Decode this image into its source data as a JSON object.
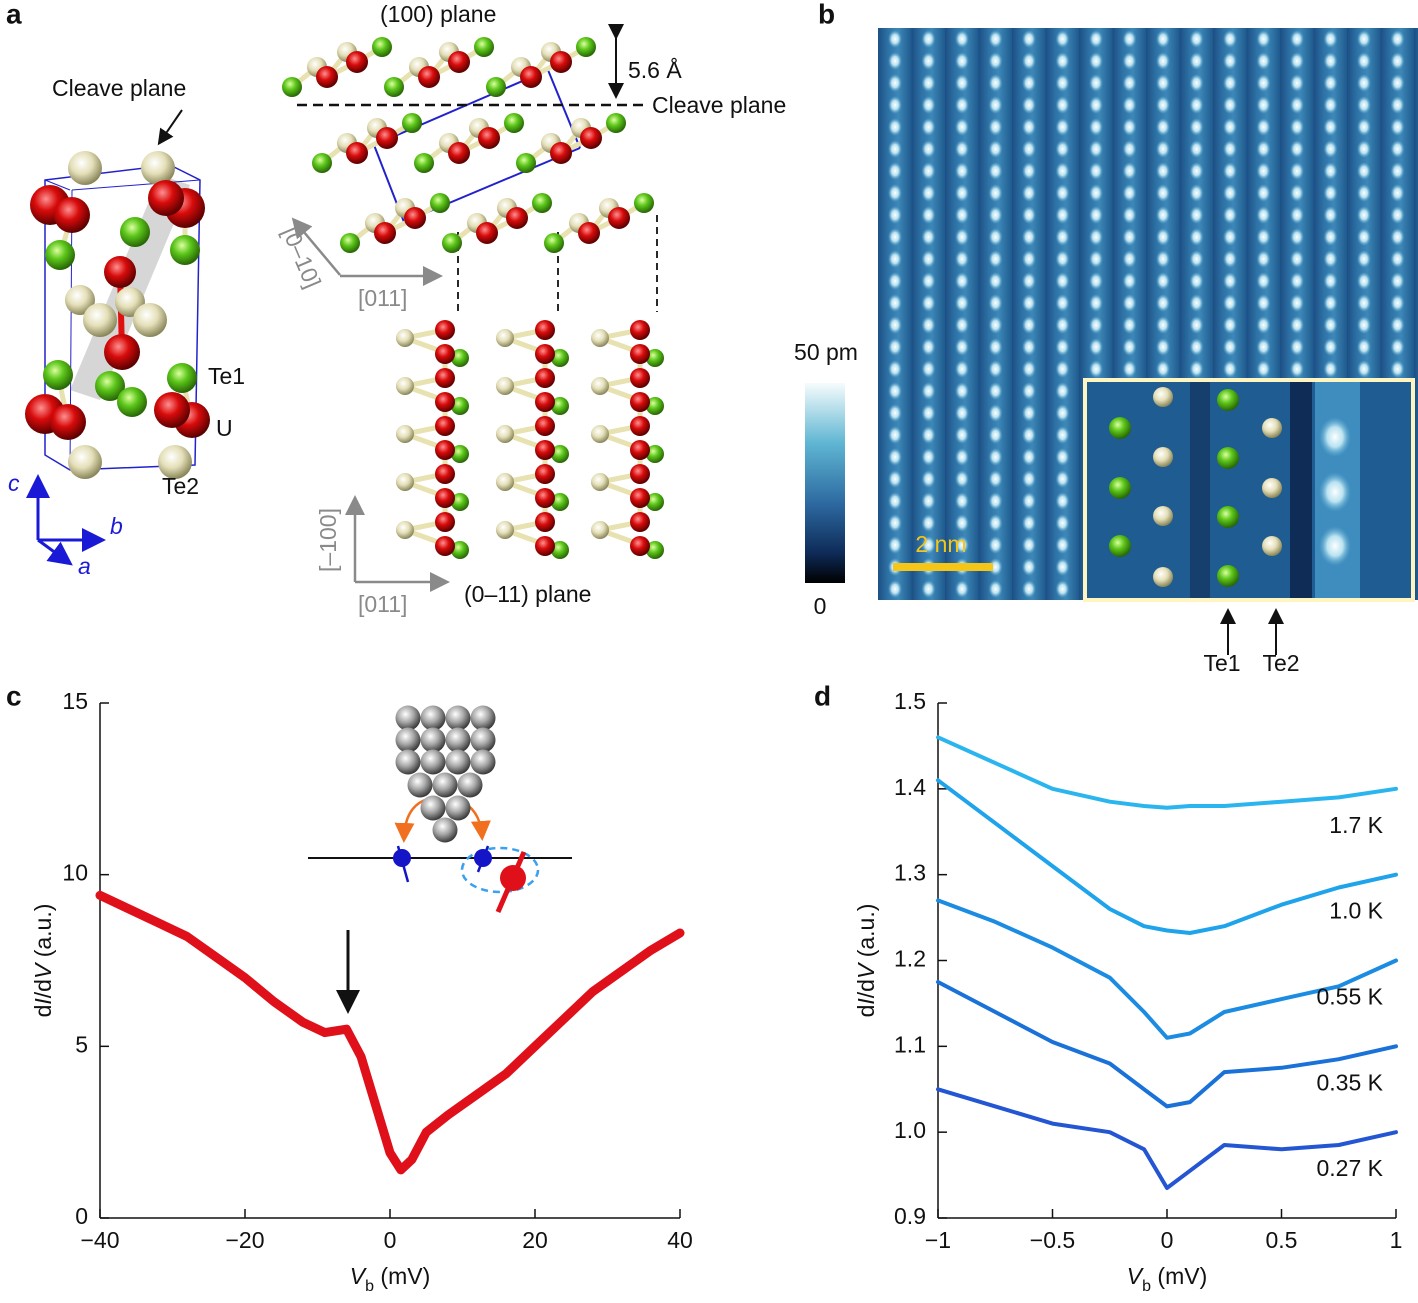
{
  "labels": [
    "a",
    "b",
    "c",
    "d"
  ],
  "panels": {
    "a": {
      "cleave_plane_left": "Cleave plane",
      "te1": "Te1",
      "u": "U",
      "te2": "Te2",
      "axis_c": "c",
      "axis_b": "b",
      "axis_a": "a",
      "plane_100": "(100) plane",
      "spacing": "5.6 Å",
      "cleave_plane_right": "Cleave plane",
      "dir_0m10": "[0–10]",
      "dir_011_top": "[011]",
      "dir_m100": "[–100]",
      "dir_011_bottom": "[011]",
      "plane_0m11": "(0–11) plane"
    },
    "b": {
      "colorbar_max": "50 pm",
      "colorbar_min": "0",
      "scale_bar": "2 nm",
      "te1": "Te1",
      "te2": "Te2"
    }
  },
  "chart_data": [
    {
      "type": "line",
      "x": [
        -40,
        -36,
        -32,
        -28,
        -24,
        -20,
        -16,
        -12,
        -9,
        -6,
        -4,
        -2,
        0,
        1.5,
        3,
        5,
        8,
        12,
        16,
        20,
        24,
        28,
        32,
        36,
        40
      ],
      "values": [
        9.4,
        9.0,
        8.6,
        8.2,
        7.6,
        7.0,
        6.3,
        5.7,
        5.4,
        5.5,
        4.7,
        3.3,
        1.9,
        1.4,
        1.7,
        2.5,
        3.0,
        3.6,
        4.2,
        5.0,
        5.8,
        6.6,
        7.2,
        7.8,
        8.3
      ],
      "color": "#e0101a",
      "xlim": [
        -40,
        40
      ],
      "xticks": [
        {
          "value": -40,
          "label": "−40"
        },
        {
          "value": -20,
          "label": "−20"
        },
        0,
        20,
        40
      ],
      "ylim": [
        0,
        15
      ],
      "yticks": [
        0,
        5,
        10,
        15
      ],
      "xlabel": [
        "V",
        "b",
        " (mV)"
      ],
      "ylabel": [
        "d",
        "I",
        "/d",
        "V",
        " (a.u.)"
      ]
    },
    {
      "type": "line",
      "x": [
        -1,
        -0.75,
        -0.5,
        -0.25,
        -0.1,
        0,
        0.1,
        0.25,
        0.5,
        0.75,
        1
      ],
      "series": [
        {
          "name": "1.7 K",
          "color": "#2bb5ee",
          "values": [
            1.46,
            1.43,
            1.4,
            1.385,
            1.38,
            1.378,
            1.38,
            1.38,
            1.385,
            1.39,
            1.4
          ]
        },
        {
          "name": "1.0 K",
          "color": "#1fa3ea",
          "values": [
            1.41,
            1.36,
            1.31,
            1.26,
            1.24,
            1.235,
            1.232,
            1.24,
            1.265,
            1.285,
            1.3
          ]
        },
        {
          "name": "0.55 K",
          "color": "#1b8ce2",
          "values": [
            1.27,
            1.245,
            1.215,
            1.18,
            1.14,
            1.11,
            1.115,
            1.14,
            1.155,
            1.17,
            1.2
          ]
        },
        {
          "name": "0.35 K",
          "color": "#1a72d8",
          "values": [
            1.175,
            1.14,
            1.105,
            1.08,
            1.05,
            1.03,
            1.035,
            1.07,
            1.075,
            1.085,
            1.1
          ]
        },
        {
          "name": "0.27 K",
          "color": "#2456d4",
          "values": [
            1.05,
            1.03,
            1.01,
            1.0,
            0.98,
            0.935,
            0.955,
            0.985,
            0.98,
            0.985,
            1.0
          ]
        }
      ],
      "xlim": [
        -1,
        1
      ],
      "xticks": [
        {
          "value": -1,
          "label": "−1"
        },
        {
          "value": -0.5,
          "label": "−0.5"
        },
        0,
        0.5,
        1
      ],
      "ylim": [
        0.9,
        1.5
      ],
      "yticks": [
        0.9,
        {
          "value": 1,
          "label": "1.0"
        },
        1.1,
        1.2,
        1.3,
        1.4,
        1.5
      ],
      "xlabel": [
        "V",
        "b",
        " (mV)"
      ],
      "ylabel": [
        "d",
        "I",
        "/d",
        "V",
        " (a.u.)"
      ]
    }
  ]
}
